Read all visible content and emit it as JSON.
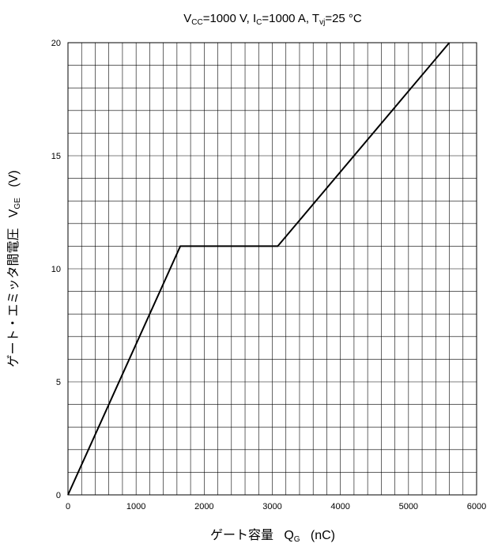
{
  "chart_data": {
    "type": "line",
    "title": {
      "parts": [
        {
          "text": "V",
          "sub": false
        },
        {
          "text": "CC",
          "sub": true
        },
        {
          "text": "=1000 V, I",
          "sub": false
        },
        {
          "text": "C",
          "sub": true
        },
        {
          "text": "=1000 A, T",
          "sub": false
        },
        {
          "text": "vj",
          "sub": true
        },
        {
          "text": "=25 °C",
          "sub": false
        }
      ]
    },
    "xlabel": {
      "main": "ゲート容量",
      "symbol": "Q",
      "symbol_sub": "G",
      "unit": "(nC)"
    },
    "ylabel": {
      "main": "ゲート・エミッタ間電圧",
      "symbol": "V",
      "symbol_sub": "GE",
      "unit": "(V)"
    },
    "xlim": [
      0,
      6000
    ],
    "ylim": [
      0,
      20
    ],
    "x_ticks": [
      "0",
      "1000",
      "2000",
      "3000",
      "4000",
      "5000",
      "6000"
    ],
    "y_ticks": [
      "0",
      "5",
      "10",
      "15",
      "20"
    ],
    "x_minor_step": 200,
    "y_minor_step": 1,
    "grid": true,
    "series": [
      {
        "color": "#000000",
        "x": [
          0,
          1650,
          3080,
          5600
        ],
        "y": [
          0,
          11,
          11,
          20
        ]
      }
    ]
  }
}
